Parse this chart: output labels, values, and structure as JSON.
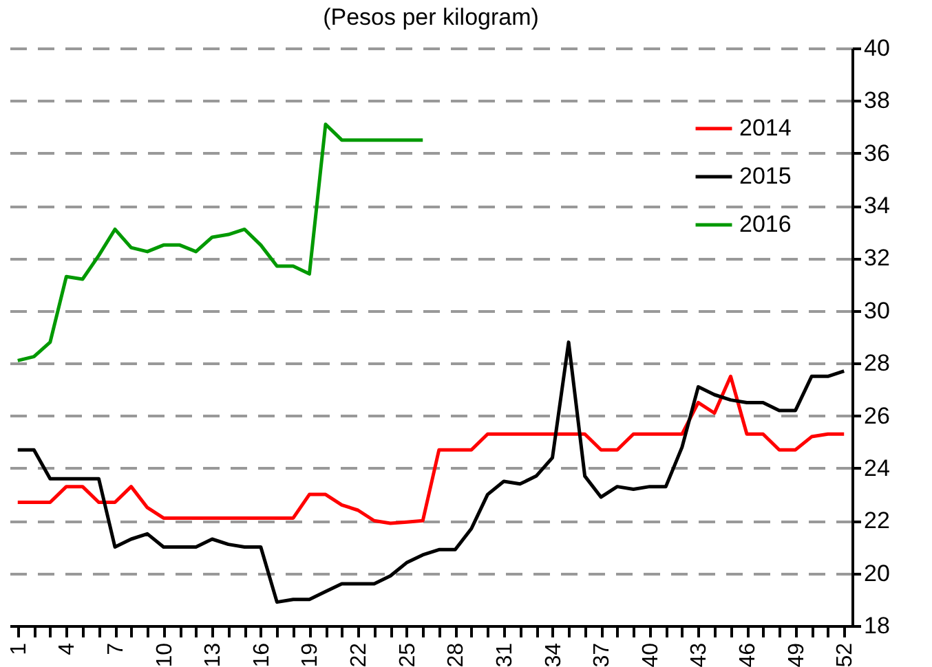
{
  "chart_data": {
    "type": "line",
    "title": "(Pesos per kilogram)",
    "x": [
      1,
      2,
      3,
      4,
      5,
      6,
      7,
      8,
      9,
      10,
      11,
      12,
      13,
      14,
      15,
      16,
      17,
      18,
      19,
      20,
      21,
      22,
      23,
      24,
      25,
      26,
      27,
      28,
      29,
      30,
      31,
      32,
      33,
      34,
      35,
      36,
      37,
      38,
      39,
      40,
      41,
      42,
      43,
      44,
      45,
      46,
      47,
      48,
      49,
      50,
      51,
      52
    ],
    "series": [
      {
        "name": "2014",
        "color": "#ff0000",
        "values": [
          22.7,
          22.7,
          22.7,
          23.3,
          23.3,
          22.7,
          22.7,
          23.3,
          22.5,
          22.1,
          22.1,
          22.1,
          22.1,
          22.1,
          22.1,
          22.1,
          22.1,
          22.1,
          23.0,
          23.0,
          22.6,
          22.4,
          22.0,
          21.9,
          21.95,
          22.0,
          24.7,
          24.7,
          24.7,
          25.3,
          25.3,
          25.3,
          25.3,
          25.3,
          25.3,
          25.3,
          24.7,
          24.7,
          25.3,
          25.3,
          25.3,
          25.3,
          26.5,
          26.1,
          27.5,
          25.3,
          25.3,
          24.7,
          24.7,
          25.2,
          25.3,
          25.3
        ]
      },
      {
        "name": "2015",
        "color": "#000000",
        "values": [
          24.7,
          24.7,
          23.6,
          23.6,
          23.6,
          23.6,
          21.0,
          21.3,
          21.5,
          21.0,
          21.0,
          21.0,
          21.3,
          21.1,
          21.0,
          21.0,
          18.9,
          19.0,
          19.0,
          19.3,
          19.6,
          19.6,
          19.6,
          19.9,
          20.4,
          20.7,
          20.9,
          20.9,
          21.7,
          23.0,
          23.5,
          23.4,
          23.7,
          24.4,
          28.8,
          23.7,
          22.9,
          23.3,
          23.2,
          23.3,
          23.3,
          24.8,
          27.1,
          26.8,
          26.6,
          26.5,
          26.5,
          26.2,
          26.2,
          27.5,
          27.5,
          27.7
        ]
      },
      {
        "name": "2016",
        "color": "#009900",
        "values": [
          28.1,
          28.25,
          28.8,
          31.3,
          31.2,
          32.1,
          33.1,
          32.4,
          32.25,
          32.5,
          32.5,
          32.25,
          32.8,
          32.9,
          33.1,
          32.5,
          31.7,
          31.7,
          31.4,
          37.1,
          36.5,
          36.5,
          36.5,
          36.5,
          36.5,
          36.5,
          null,
          null,
          null,
          null,
          null,
          null,
          null,
          null,
          null,
          null,
          null,
          null,
          null,
          null,
          null,
          null,
          null,
          null,
          null,
          null,
          null,
          null,
          null,
          null,
          null,
          null
        ]
      }
    ],
    "xlim": [
      0.5,
      52.5
    ],
    "xticks": [
      1,
      {
        "value": 2,
        "label": null
      },
      {
        "value": 3,
        "label": null
      },
      4,
      {
        "value": 5,
        "label": null
      },
      {
        "value": 6,
        "label": null
      },
      7,
      {
        "value": 8,
        "label": null
      },
      {
        "value": 9,
        "label": null
      },
      10,
      {
        "value": 11,
        "label": null
      },
      {
        "value": 12,
        "label": null
      },
      13,
      {
        "value": 14,
        "label": null
      },
      {
        "value": 15,
        "label": null
      },
      16,
      {
        "value": 17,
        "label": null
      },
      {
        "value": 18,
        "label": null
      },
      19,
      {
        "value": 20,
        "label": null
      },
      {
        "value": 21,
        "label": null
      },
      22,
      {
        "value": 23,
        "label": null
      },
      {
        "value": 24,
        "label": null
      },
      25,
      {
        "value": 26,
        "label": null
      },
      {
        "value": 27,
        "label": null
      },
      28,
      {
        "value": 29,
        "label": null
      },
      {
        "value": 30,
        "label": null
      },
      31,
      {
        "value": 32,
        "label": null
      },
      {
        "value": 33,
        "label": null
      },
      34,
      {
        "value": 35,
        "label": null
      },
      {
        "value": 36,
        "label": null
      },
      37,
      {
        "value": 38,
        "label": null
      },
      {
        "value": 39,
        "label": null
      },
      40,
      {
        "value": 41,
        "label": null
      },
      {
        "value": 42,
        "label": null
      },
      43,
      {
        "value": 44,
        "label": null
      },
      {
        "value": 45,
        "label": null
      },
      46,
      {
        "value": 47,
        "label": null
      },
      {
        "value": 48,
        "label": null
      },
      49,
      {
        "value": 50,
        "label": null
      },
      {
        "value": 51,
        "label": null
      },
      52
    ],
    "ylim": [
      18,
      40
    ],
    "yticks": [
      18,
      20,
      22,
      24,
      26,
      28,
      30,
      32,
      34,
      36,
      38,
      40
    ],
    "grid": "y",
    "legend": "top right"
  }
}
